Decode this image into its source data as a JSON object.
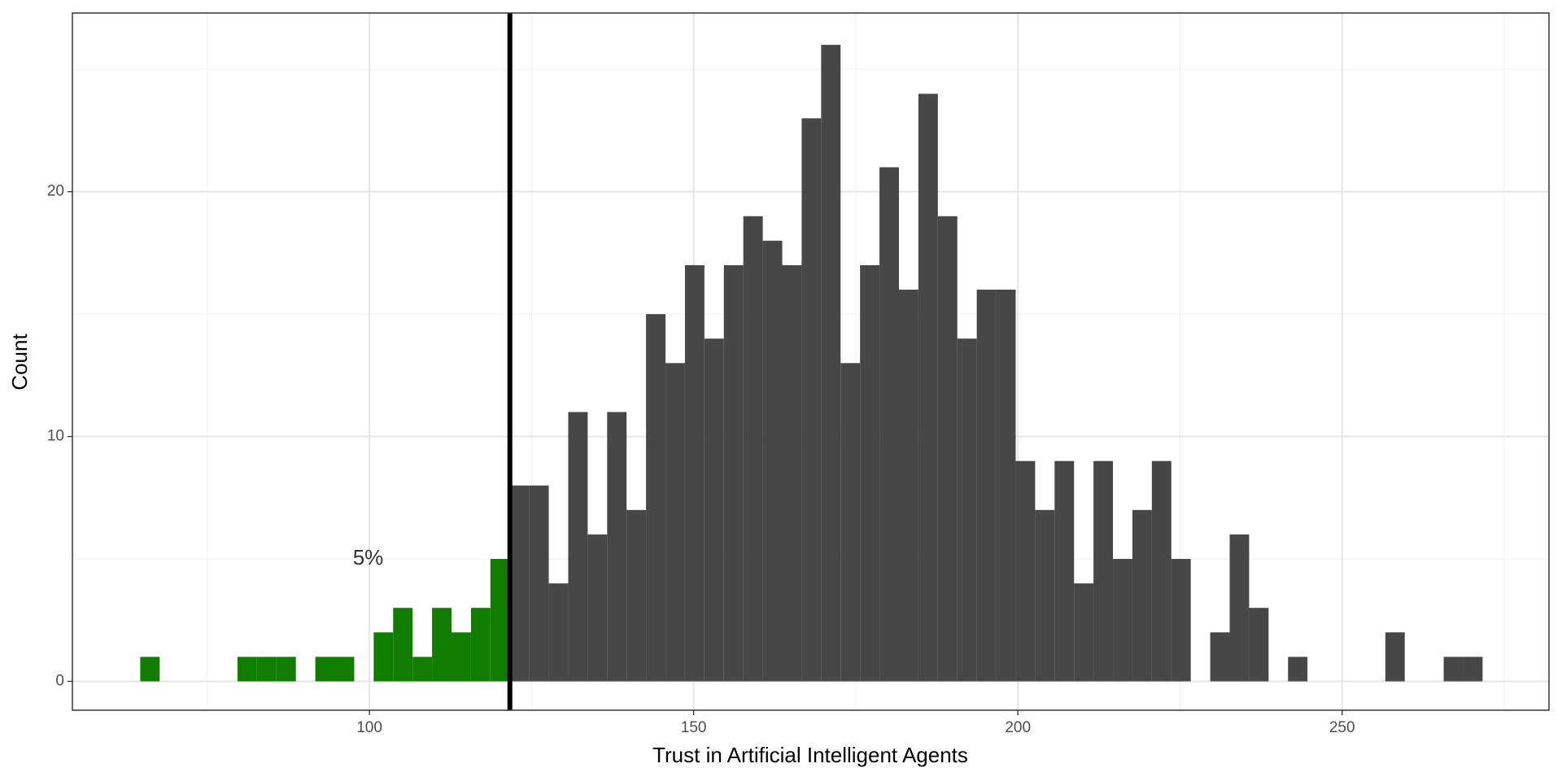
{
  "chart_data": {
    "type": "histogram",
    "x_label": "Trust in Artificial Intelligent Agents",
    "y_label": "Count",
    "bins": [
      64.66,
      67.66,
      70.66,
      73.66,
      76.66,
      79.66,
      82.66,
      85.66,
      88.66,
      91.66,
      94.66,
      97.66,
      100.66,
      103.66,
      106.66,
      109.66,
      112.66,
      115.66,
      118.66,
      121.66,
      124.66,
      127.66,
      130.66,
      133.66,
      136.66,
      139.66,
      142.66,
      145.66,
      148.66,
      151.66,
      154.66,
      157.66,
      160.66,
      163.66,
      166.66,
      169.66,
      172.66,
      175.66,
      178.66,
      181.66,
      184.66,
      187.66,
      190.66,
      193.66,
      196.66,
      199.66,
      202.66,
      205.66,
      208.66,
      211.66,
      214.66,
      217.66,
      220.66,
      223.66,
      226.66,
      229.66,
      232.66,
      235.66,
      238.66,
      241.66,
      244.66,
      247.66,
      250.66,
      253.66,
      256.66,
      259.66,
      262.66,
      265.66,
      268.66,
      271.66
    ],
    "counts": [
      1,
      0,
      0,
      0,
      0,
      1,
      1,
      1,
      0,
      1,
      1,
      0,
      2,
      3,
      1,
      3,
      2,
      3,
      5,
      8,
      8,
      4,
      11,
      6,
      11,
      7,
      15,
      13,
      17,
      14,
      17,
      19,
      18,
      17,
      23,
      26,
      13,
      17,
      21,
      16,
      24,
      19,
      14,
      16,
      16,
      9,
      7,
      9,
      4,
      9,
      5,
      7,
      9,
      5,
      0,
      2,
      6,
      3,
      0,
      1,
      0,
      0,
      0,
      0,
      2,
      0,
      0,
      1,
      1
    ],
    "threshold": 121.66,
    "color_below": "#117d00",
    "color_above": "#474747",
    "threshold_color": "#000000",
    "annotations": [
      {
        "text": "5%",
        "x": 99.8,
        "y": 5
      }
    ],
    "xlim": [
      54.2,
      281.9
    ],
    "ylim": [
      -1.18,
      27.3
    ],
    "xticks": [
      100,
      150,
      200,
      250
    ],
    "yticks": [
      0,
      10,
      20
    ],
    "x_minor_ticks": [
      75,
      125,
      175,
      225,
      275
    ],
    "y_minor_ticks": [
      5,
      15,
      25
    ],
    "grid": true
  }
}
